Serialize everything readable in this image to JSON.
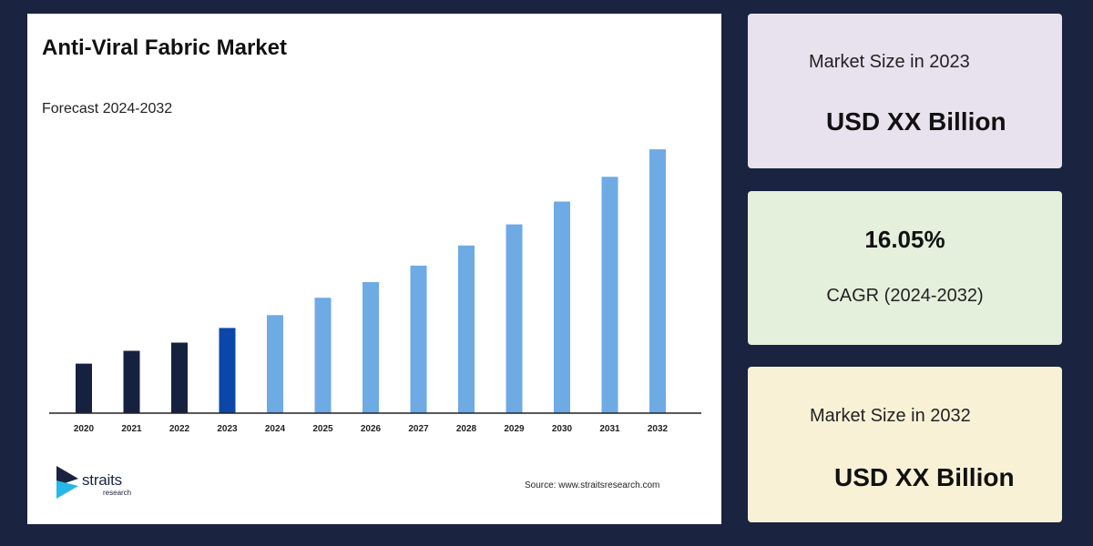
{
  "chart_data": {
    "type": "bar",
    "title": "Anti-Viral Fabric Market",
    "subtitle": "Forecast 2024-2032",
    "categories": [
      "2020",
      "2021",
      "2022",
      "2023",
      "2024",
      "2025",
      "2026",
      "2027",
      "2028",
      "2029",
      "2030",
      "2031",
      "2032"
    ],
    "values": [
      54,
      68,
      77,
      93,
      107,
      126,
      143,
      161,
      183,
      206,
      231,
      258,
      288
    ],
    "ylim": [
      0,
      300
    ],
    "grid": false,
    "colors": {
      "historical": "#15213f",
      "base_year": "#0a47a8",
      "forecast": "#6eaae4",
      "axis": "#222222"
    },
    "bar_kind": [
      "historical",
      "historical",
      "historical",
      "base_year",
      "forecast",
      "forecast",
      "forecast",
      "forecast",
      "forecast",
      "forecast",
      "forecast",
      "forecast",
      "forecast"
    ]
  },
  "branding": {
    "logo_word": "straits",
    "logo_sub": "research",
    "source": "Source: www.straitsresearch.com"
  },
  "stats": {
    "size_2023_label": "Market Size in 2023",
    "size_2023_value": "USD XX Billion",
    "cagr_value": "16.05%",
    "cagr_label": "CAGR (2024-2032)",
    "size_2032_label": "Market Size in 2032",
    "size_2032_value": "USD XX Billion"
  }
}
